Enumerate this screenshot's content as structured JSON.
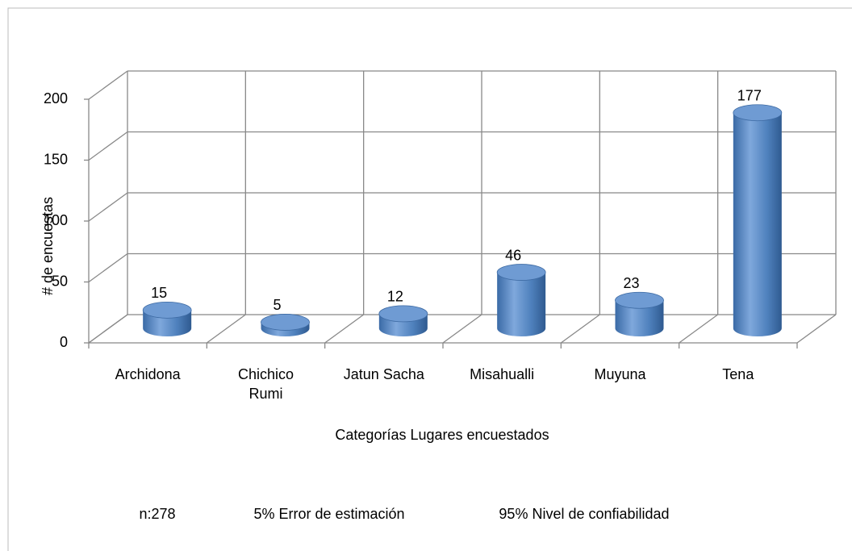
{
  "chart_data": {
    "type": "bar3d",
    "categories": [
      "Archidona",
      "Chichico Rumi",
      "Jatun Sacha",
      "Misahualli",
      "Muyuna",
      "Tena"
    ],
    "values": [
      15,
      5,
      12,
      46,
      23,
      177
    ],
    "color": "#4f81bd",
    "ylim": [
      0,
      200
    ],
    "yticks": [
      0,
      50,
      100,
      150,
      200
    ],
    "grid": true,
    "y_label": "# de encuestas",
    "x_label": "Categorías Lugares encuestados",
    "notes": [
      "n:278",
      "5% Error de estimación",
      "95% Nivel de confiabilidad"
    ]
  }
}
